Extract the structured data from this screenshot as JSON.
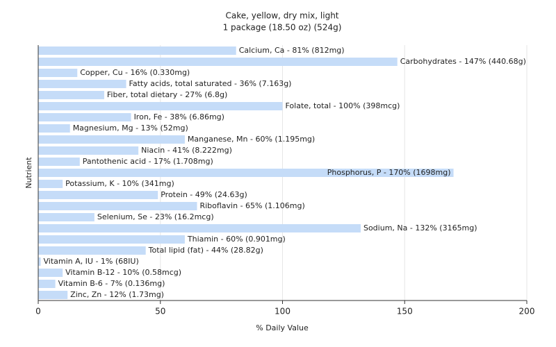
{
  "chart_data": {
    "type": "bar",
    "orientation": "horizontal",
    "title": "Cake, yellow, dry mix, light",
    "subtitle": "1 package (18.50 oz) (524g)",
    "x_label": "% Daily Value",
    "y_label": "Nutrient",
    "values": [
      81,
      147,
      16,
      36,
      27,
      100,
      38,
      13,
      60,
      41,
      17,
      170,
      10,
      49,
      65,
      23,
      132,
      60,
      44,
      1,
      10,
      7,
      12
    ],
    "value_labels": [
      "Calcium, Ca - 81% (812mg)",
      "Carbohydrates - 147% (440.68g)",
      "Copper, Cu - 16% (0.330mg)",
      "Fatty acids, total saturated - 36% (7.163g)",
      "Fiber, total dietary - 27% (6.8g)",
      "Folate, total - 100% (398mcg)",
      "Iron, Fe - 38% (6.86mg)",
      "Magnesium, Mg - 13% (52mg)",
      "Manganese, Mn - 60% (1.195mg)",
      "Niacin - 41% (8.222mg)",
      "Pantothenic acid - 17% (1.708mg)",
      "Phosphorus, P - 170% (1698mg)",
      "Potassium, K - 10% (341mg)",
      "Protein - 49% (24.63g)",
      "Riboflavin - 65% (1.106mg)",
      "Selenium, Se - 23% (16.2mcg)",
      "Sodium, Na - 132% (3165mg)",
      "Thiamin - 60% (0.901mg)",
      "Total lipid (fat) - 44% (28.82g)",
      "Vitamin A, IU - 1% (68IU)",
      "Vitamin B-12 - 10% (0.58mcg)",
      "Vitamin B-6 - 7% (0.136mg)",
      "Zinc, Zn - 12% (1.73mg)"
    ],
    "color": "#c5dcf8",
    "xlim": [
      0,
      200
    ],
    "xticks": [
      0,
      50,
      100,
      150,
      200
    ],
    "grid": true
  }
}
